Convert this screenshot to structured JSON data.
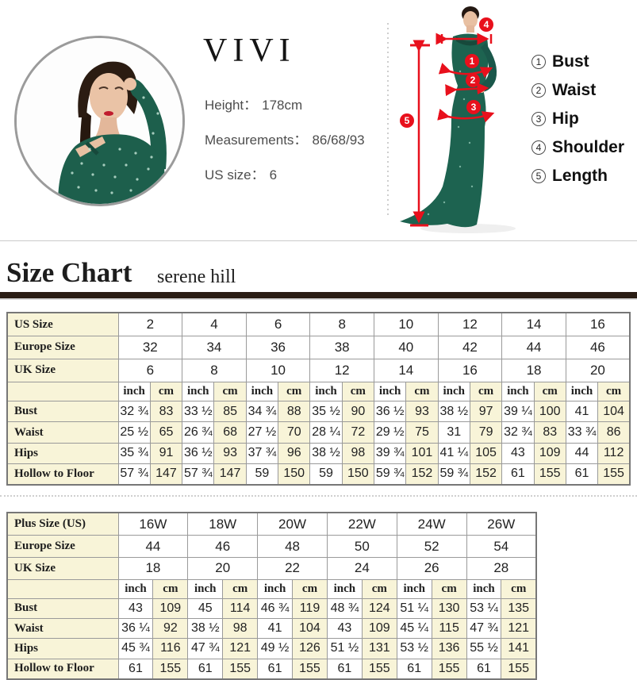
{
  "profile": {
    "brand": "VIVI",
    "specs": [
      {
        "label": "Height：",
        "value": "178cm"
      },
      {
        "label": "Measurements：",
        "value": "86/68/93"
      },
      {
        "label": "US size：",
        "value": "6"
      }
    ]
  },
  "figure": {
    "markers": [
      "1",
      "2",
      "3",
      "4",
      "5"
    ],
    "legend": [
      {
        "num": "1",
        "label": "Bust"
      },
      {
        "num": "2",
        "label": "Waist"
      },
      {
        "num": "3",
        "label": "Hip"
      },
      {
        "num": "4",
        "label": "Shoulder"
      },
      {
        "num": "5",
        "label": "Length"
      }
    ],
    "accent_red": "#e8101c",
    "dress_green": "#1d5f4c"
  },
  "section": {
    "title": "Size Chart",
    "subtitle": "serene hill"
  },
  "colors": {
    "cream": "#f8f4d8",
    "bar_brown": "#2a1d14",
    "red": "#e8101c"
  },
  "tables": [
    {
      "columns": 8,
      "label_col_width": 140,
      "units": [
        "inch",
        "cm"
      ],
      "size_rows": [
        {
          "label": "US Size",
          "values": [
            "2",
            "4",
            "6",
            "8",
            "10",
            "12",
            "14",
            "16"
          ]
        },
        {
          "label": "Europe Size",
          "values": [
            "32",
            "34",
            "36",
            "38",
            "40",
            "42",
            "44",
            "46"
          ]
        },
        {
          "label": "UK Size",
          "values": [
            "6",
            "8",
            "10",
            "12",
            "14",
            "16",
            "18",
            "20"
          ]
        }
      ],
      "measure_rows": [
        {
          "label": "Bust",
          "pairs": [
            [
              "32 ¾",
              "83"
            ],
            [
              "33 ½",
              "85"
            ],
            [
              "34 ¾",
              "88"
            ],
            [
              "35 ½",
              "90"
            ],
            [
              "36 ½",
              "93"
            ],
            [
              "38 ½",
              "97"
            ],
            [
              "39 ¼",
              "100"
            ],
            [
              "41",
              "104"
            ]
          ]
        },
        {
          "label": "Waist",
          "pairs": [
            [
              "25 ½",
              "65"
            ],
            [
              "26 ¾",
              "68"
            ],
            [
              "27 ½",
              "70"
            ],
            [
              "28 ¼",
              "72"
            ],
            [
              "29 ½",
              "75"
            ],
            [
              "31",
              "79"
            ],
            [
              "32 ¾",
              "83"
            ],
            [
              "33 ¾",
              "86"
            ]
          ]
        },
        {
          "label": "Hips",
          "pairs": [
            [
              "35 ¾",
              "91"
            ],
            [
              "36 ½",
              "93"
            ],
            [
              "37 ¾",
              "96"
            ],
            [
              "38 ½",
              "98"
            ],
            [
              "39 ¾",
              "101"
            ],
            [
              "41 ¼",
              "105"
            ],
            [
              "43",
              "109"
            ],
            [
              "44",
              "112"
            ]
          ]
        },
        {
          "label": "Hollow to Floor",
          "pairs": [
            [
              "57 ¾",
              "147"
            ],
            [
              "57 ¾",
              "147"
            ],
            [
              "59",
              "150"
            ],
            [
              "59",
              "150"
            ],
            [
              "59 ¾",
              "152"
            ],
            [
              "59 ¾",
              "152"
            ],
            [
              "61",
              "155"
            ],
            [
              "61",
              "155"
            ]
          ]
        }
      ]
    },
    {
      "columns": 6,
      "label_col_width": 140,
      "units": [
        "inch",
        "cm"
      ],
      "size_rows": [
        {
          "label": "Plus Size (US)",
          "values": [
            "16W",
            "18W",
            "20W",
            "22W",
            "24W",
            "26W"
          ]
        },
        {
          "label": "Europe Size",
          "values": [
            "44",
            "46",
            "48",
            "50",
            "52",
            "54"
          ]
        },
        {
          "label": "UK Size",
          "values": [
            "18",
            "20",
            "22",
            "24",
            "26",
            "28"
          ]
        }
      ],
      "measure_rows": [
        {
          "label": "Bust",
          "pairs": [
            [
              "43",
              "109"
            ],
            [
              "45",
              "114"
            ],
            [
              "46 ¾",
              "119"
            ],
            [
              "48 ¾",
              "124"
            ],
            [
              "51 ¼",
              "130"
            ],
            [
              "53 ¼",
              "135"
            ]
          ]
        },
        {
          "label": "Waist",
          "pairs": [
            [
              "36 ¼",
              "92"
            ],
            [
              "38 ½",
              "98"
            ],
            [
              "41",
              "104"
            ],
            [
              "43",
              "109"
            ],
            [
              "45 ¼",
              "115"
            ],
            [
              "47 ¾",
              "121"
            ]
          ]
        },
        {
          "label": "Hips",
          "pairs": [
            [
              "45 ¾",
              "116"
            ],
            [
              "47 ¾",
              "121"
            ],
            [
              "49 ½",
              "126"
            ],
            [
              "51 ½",
              "131"
            ],
            [
              "53 ½",
              "136"
            ],
            [
              "55 ½",
              "141"
            ]
          ]
        },
        {
          "label": "Hollow to Floor",
          "pairs": [
            [
              "61",
              "155"
            ],
            [
              "61",
              "155"
            ],
            [
              "61",
              "155"
            ],
            [
              "61",
              "155"
            ],
            [
              "61",
              "155"
            ],
            [
              "61",
              "155"
            ]
          ]
        }
      ]
    }
  ]
}
